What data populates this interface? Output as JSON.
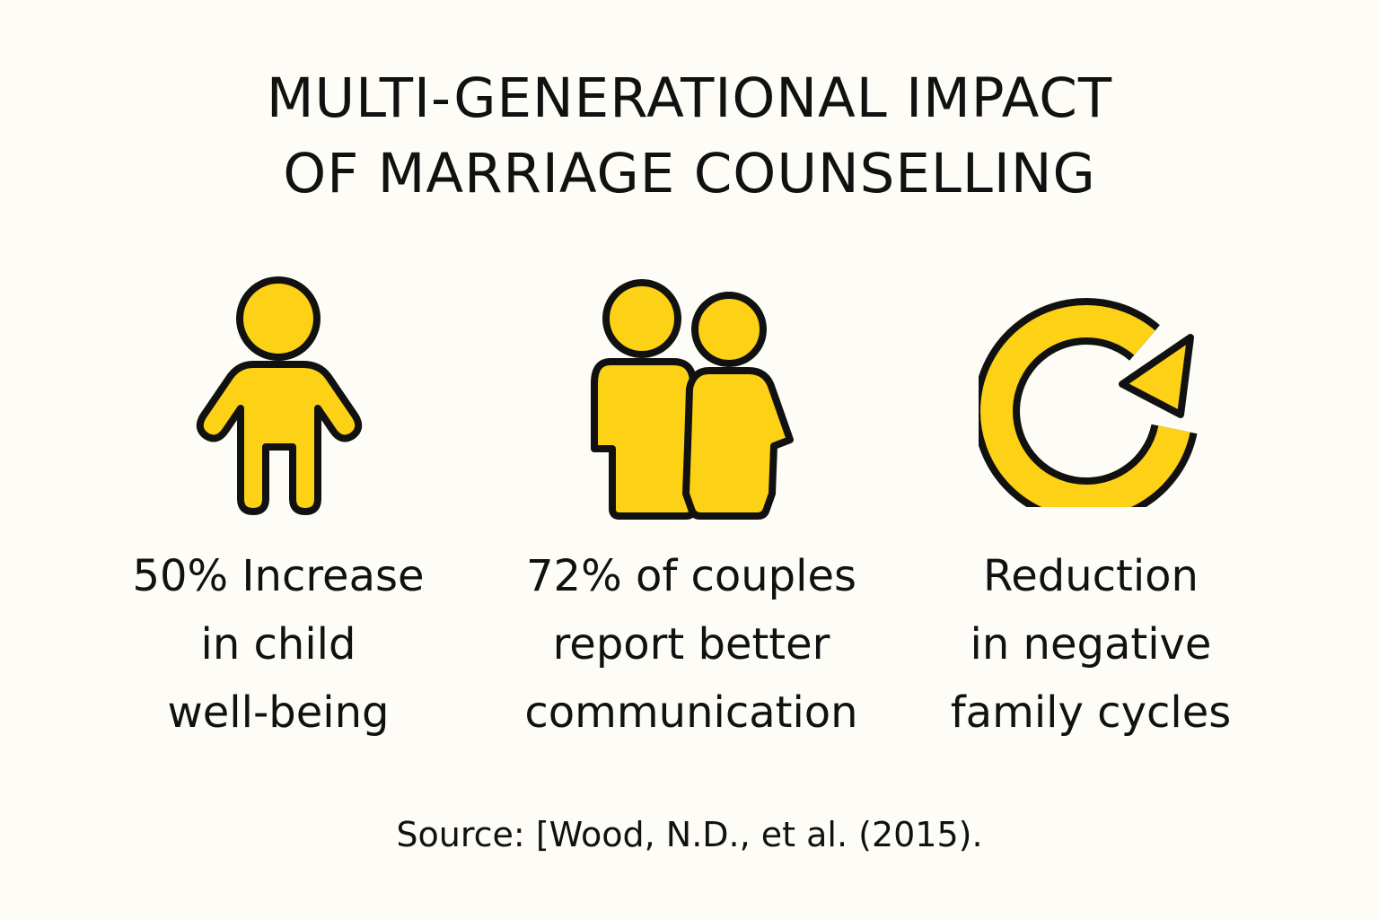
{
  "title": {
    "line1": "MULTI-GENERATIONAL IMPACT",
    "line2": "OF MARRIAGE COUNSELLING"
  },
  "colors": {
    "icon_fill": "#fcd116",
    "icon_stroke": "#111111",
    "background": "#fdfcf6"
  },
  "stats": [
    {
      "icon": "child-icon",
      "lines": [
        "50% Increase",
        "in child",
        "well-being"
      ]
    },
    {
      "icon": "couple-icon",
      "lines": [
        "72% of couples",
        "report better",
        "communication"
      ]
    },
    {
      "icon": "cycle-arrow-icon",
      "lines": [
        "Reduction",
        "in negative",
        "family cycles"
      ]
    }
  ],
  "source": "Source: [Wood, N.D., et al. (2015)."
}
